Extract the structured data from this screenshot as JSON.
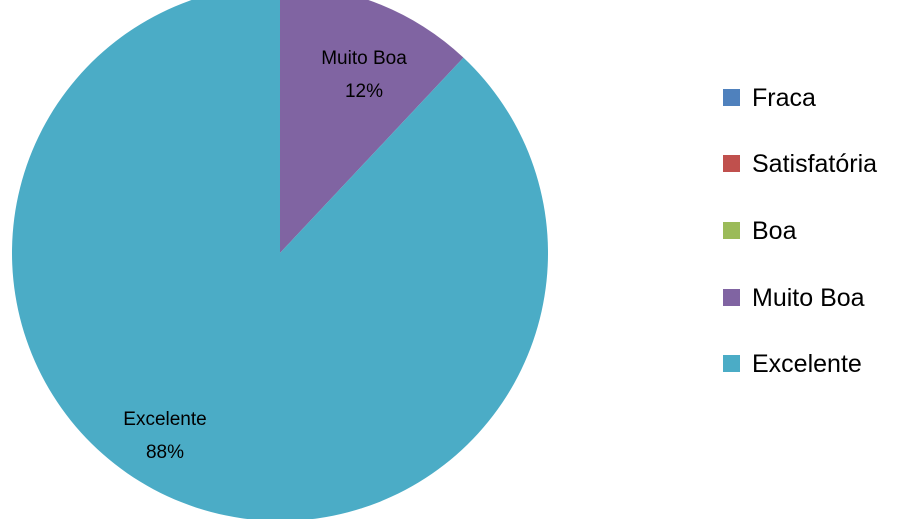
{
  "chart_data": {
    "type": "pie",
    "categories": [
      "Fraca",
      "Satisfatória",
      "Boa",
      "Muito Boa",
      "Excelente"
    ],
    "values": [
      0,
      0,
      0,
      12,
      88
    ],
    "colors": [
      "#4f81bd",
      "#c0504d",
      "#9bbb59",
      "#8064a2",
      "#4bacc6"
    ],
    "data_labels": [
      {
        "category": "Muito Boa",
        "percent": "12%"
      },
      {
        "category": "Excelente",
        "percent": "88%"
      }
    ],
    "start_angle_deg": 0,
    "direction": "clockwise",
    "legend_position": "right"
  }
}
